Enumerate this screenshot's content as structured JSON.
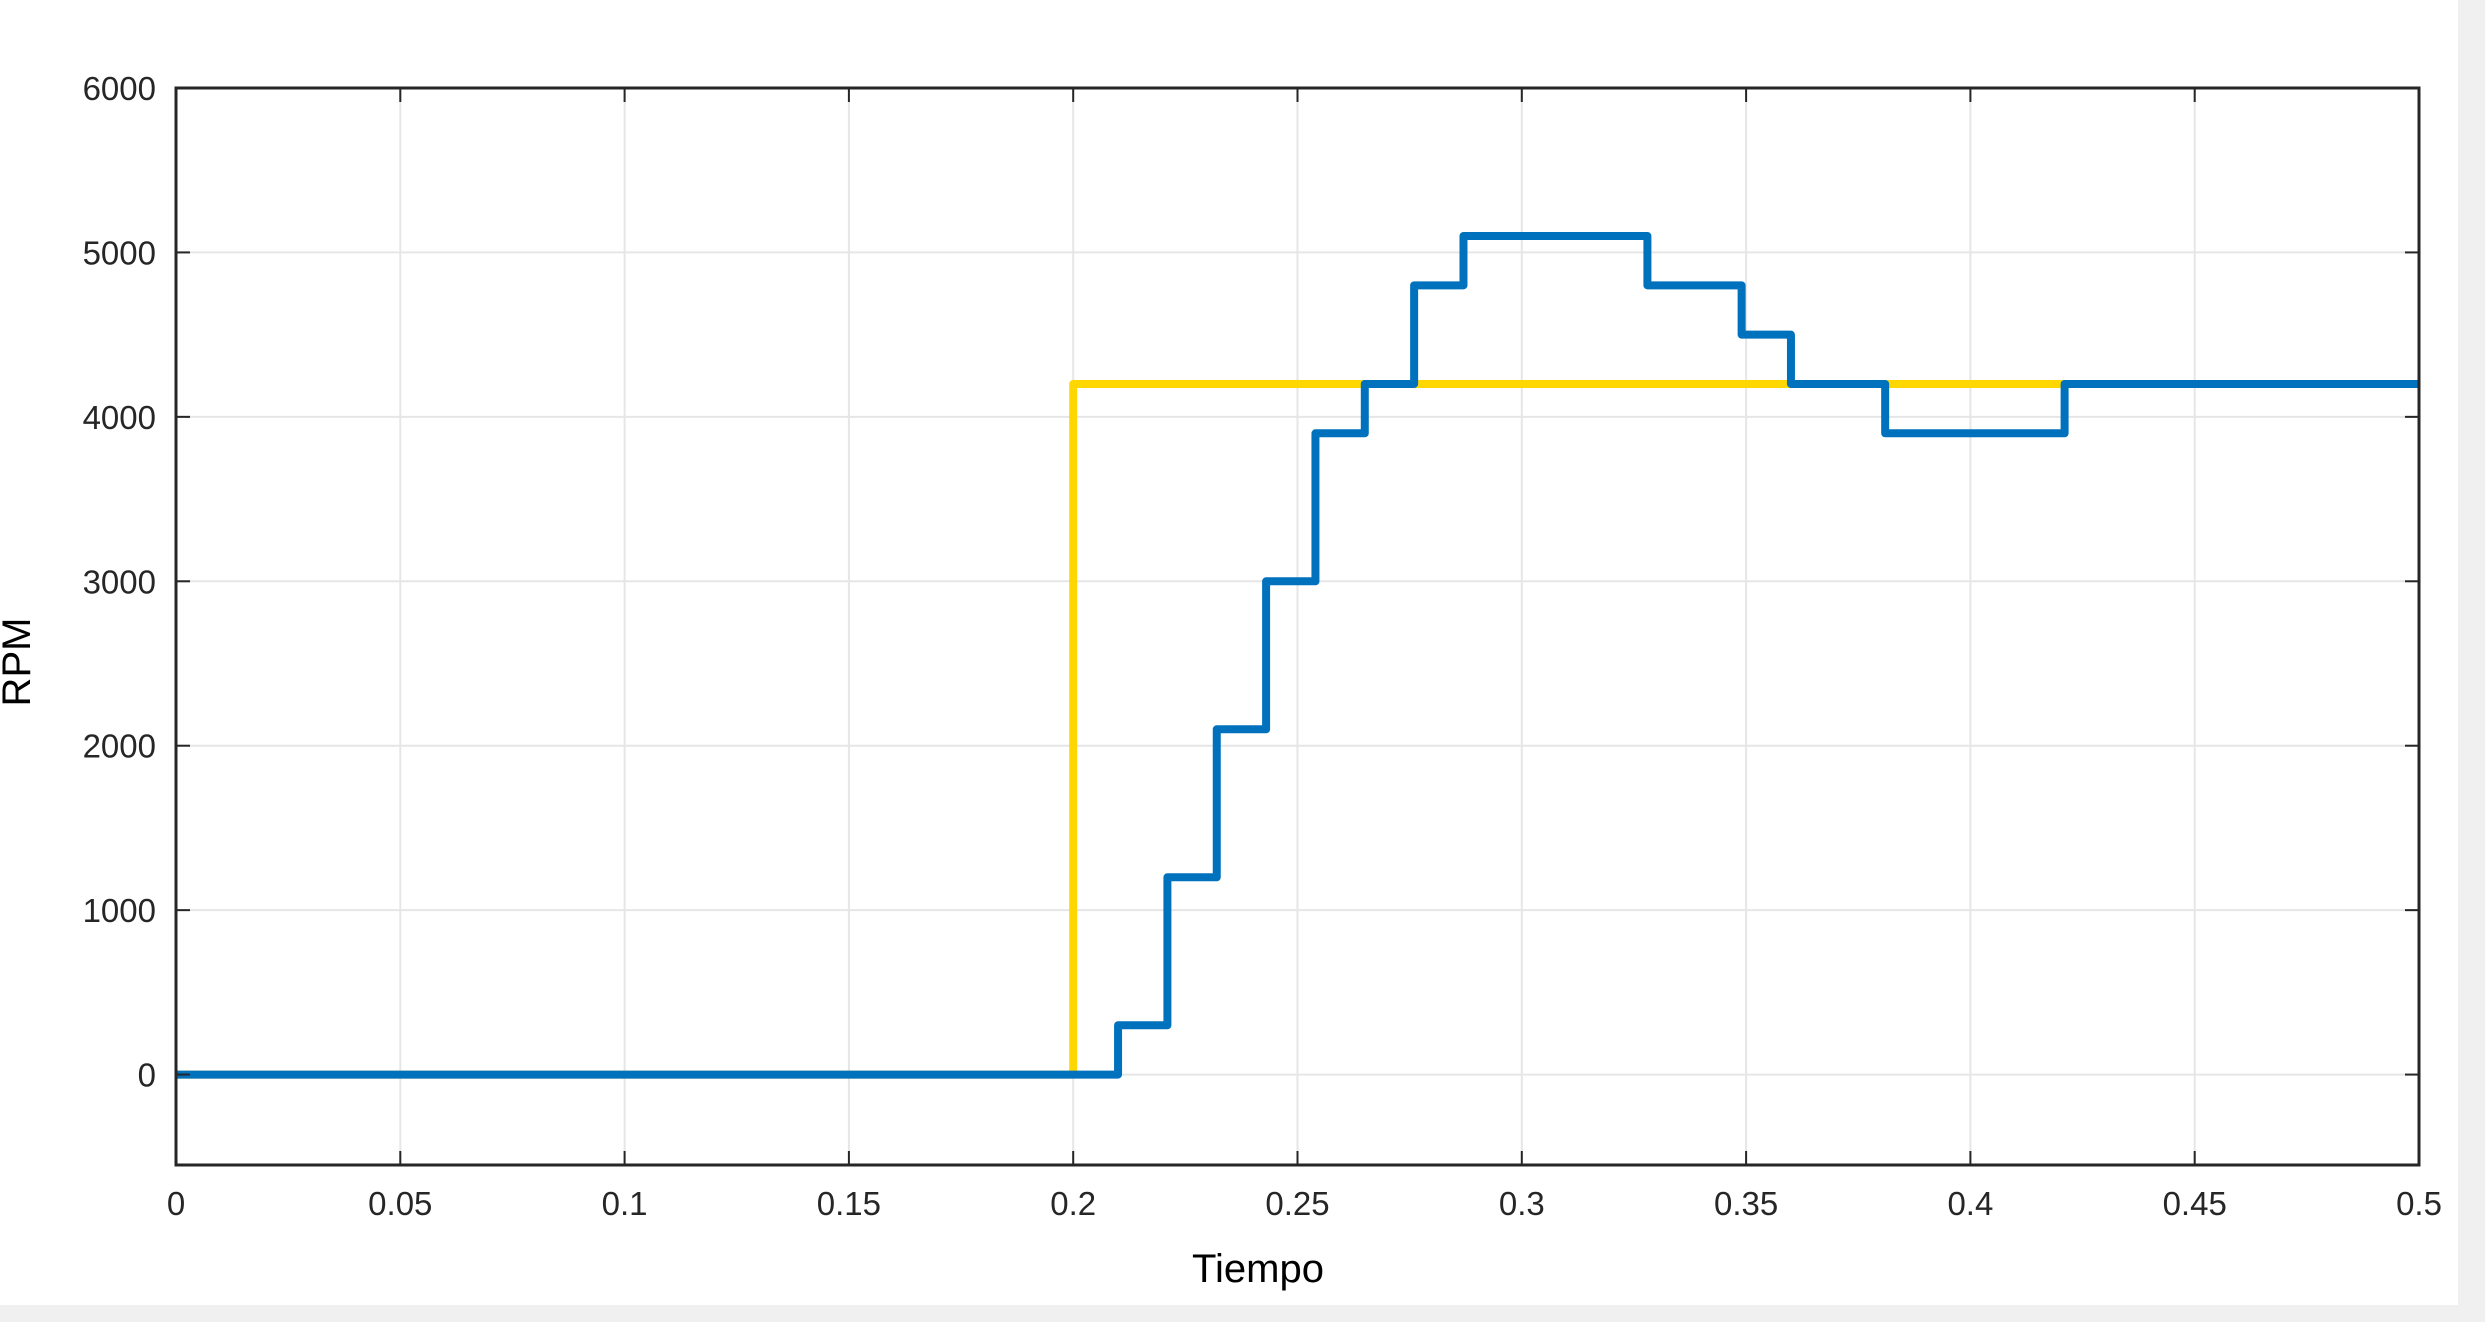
{
  "chart_data": {
    "type": "line",
    "title": "",
    "xlabel": "Tiempo",
    "ylabel": "RPM",
    "xlim": [
      0,
      0.5
    ],
    "ylim": [
      -550,
      6000
    ],
    "grid": true,
    "legend": "none",
    "x_ticks": [
      0,
      0.05,
      0.1,
      0.15,
      0.2,
      0.25,
      0.3,
      0.35,
      0.4,
      0.45,
      0.5
    ],
    "x_tick_labels": [
      "0",
      "0.05",
      "0.1",
      "0.15",
      "0.2",
      "0.25",
      "0.3",
      "0.35",
      "0.4",
      "0.45",
      "0.5"
    ],
    "y_ticks": [
      0,
      1000,
      2000,
      3000,
      4000,
      5000,
      6000
    ],
    "y_tick_labels": [
      "0",
      "1000",
      "2000",
      "3000",
      "4000",
      "5000",
      "6000"
    ],
    "series": [
      {
        "color": "#FFD700",
        "step": true,
        "x": [
          0,
          0.2,
          0.5
        ],
        "y": [
          0,
          4200,
          4200
        ]
      },
      {
        "color": "#0072BD",
        "step": true,
        "x": [
          0,
          0.21,
          0.221,
          0.232,
          0.243,
          0.254,
          0.265,
          0.276,
          0.287,
          0.328,
          0.349,
          0.36,
          0.381,
          0.421,
          0.5
        ],
        "y": [
          0,
          300,
          1200,
          2100,
          3000,
          3900,
          4200,
          4800,
          5100,
          4800,
          4500,
          4200,
          3900,
          4200,
          4200
        ]
      }
    ]
  }
}
